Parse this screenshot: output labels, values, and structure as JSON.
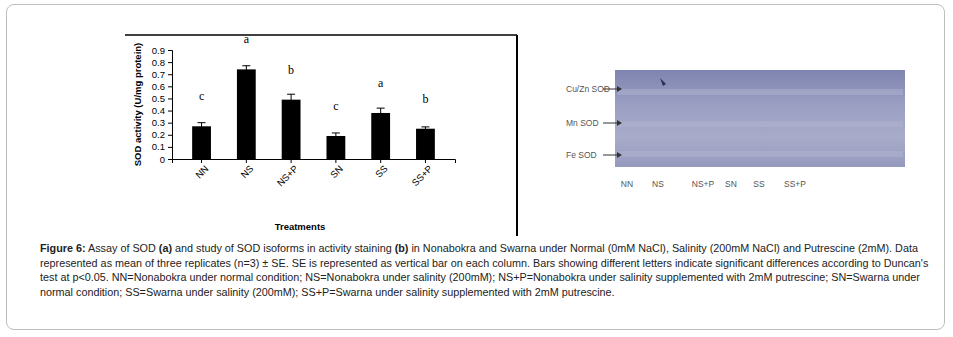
{
  "chart_data": {
    "type": "bar",
    "categories": [
      "NN",
      "NS",
      "NS+P",
      "SN",
      "SS",
      "SS+P"
    ],
    "values": [
      0.27,
      0.74,
      0.49,
      0.19,
      0.38,
      0.25
    ],
    "errors": [
      0.03,
      0.03,
      0.045,
      0.025,
      0.04,
      0.015
    ],
    "annotations": [
      "c",
      "a",
      "b",
      "c",
      "a",
      "b"
    ],
    "color": "#000000",
    "ylabel": "SOD activity (U/mg protein)",
    "xlabel": "Treatments",
    "ylim": [
      0,
      0.9
    ],
    "yticks": [
      0,
      0.1,
      0.2,
      0.3,
      0.4,
      0.5,
      0.6,
      0.7,
      0.8,
      0.9
    ]
  },
  "panel_b": {
    "band_labels": [
      "Cu/Zn SOD",
      "Mn SOD",
      "Fe SOD"
    ],
    "lane_labels": [
      "NN",
      "NS",
      "NS+P",
      "SN",
      "SS",
      "SS+P"
    ]
  },
  "caption": [
    "Figure 6:",
    " Assay of SOD ",
    "(a)",
    " and study of SOD isoforms in activity staining ",
    "(b)",
    " in Nonabokra and Swarna under Normal (0mM NaCl), Salinity (200mM NaCl) and Putrescine (2mM). Data represented as mean of three replicates (n=3) ± SE. SE is represented as vertical bar on each column. Bars showing different letters indicate significant differences according to Duncan's test at p<0.05. NN=Nonabokra under normal condition; NS=Nonabokra under salinity (200mM); NS+P=Nonabokra under salinity supplemented with 2mM putrescine; SN=Swarna under normal condition; SS=Swarna under salinity (200mM); SS+P=Swarna under salinity supplemented with 2mM putrescine."
  ]
}
